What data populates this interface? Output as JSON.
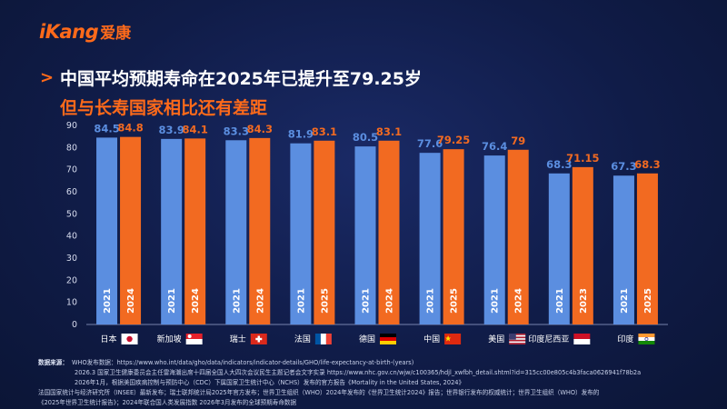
{
  "brand": {
    "logo_en": "iKang",
    "logo_cn": "爱康"
  },
  "title": {
    "line1": "中国平均预期寿命在2025年已提升至79.25岁",
    "line2": "但与长寿国家相比还有差距"
  },
  "colors": {
    "blue": "#5b8ee0",
    "orange": "#f26a21",
    "accent": "#ff6a1a"
  },
  "chart_data": {
    "type": "bar",
    "ylim": [
      0,
      90
    ],
    "yticks": [
      0,
      10,
      20,
      30,
      40,
      50,
      60,
      70,
      80,
      90
    ],
    "grid": false,
    "categories": [
      {
        "name": "日本",
        "flag": "japan",
        "bars": [
          {
            "year": "2021",
            "value": 84.5,
            "label": "84.5",
            "color": "blue"
          },
          {
            "year": "2024",
            "value": 84.8,
            "label": "84.8",
            "color": "orange"
          }
        ]
      },
      {
        "name": "新加坡",
        "flag": "singapore",
        "bars": [
          {
            "year": "2021",
            "value": 83.9,
            "label": "83.9",
            "color": "blue"
          },
          {
            "year": "2024",
            "value": 84.1,
            "label": "84.1",
            "color": "orange"
          }
        ]
      },
      {
        "name": "瑞士",
        "flag": "swiss",
        "bars": [
          {
            "year": "2021",
            "value": 83.3,
            "label": "83.3",
            "color": "blue"
          },
          {
            "year": "2024",
            "value": 84.3,
            "label": "84.3",
            "color": "orange"
          }
        ]
      },
      {
        "name": "法国",
        "flag": "france",
        "bars": [
          {
            "year": "2021",
            "value": 81.9,
            "label": "81.9",
            "color": "blue"
          },
          {
            "year": "2025",
            "value": 83.1,
            "label": "83.1",
            "color": "orange"
          }
        ]
      },
      {
        "name": "德国",
        "flag": "germany",
        "bars": [
          {
            "year": "2021",
            "value": 80.5,
            "label": "80.5",
            "color": "blue"
          },
          {
            "year": "2024",
            "value": 83.1,
            "label": "83.1",
            "color": "orange"
          }
        ]
      },
      {
        "name": "中国",
        "flag": "china",
        "bars": [
          {
            "year": "2021",
            "value": 77.6,
            "label": "77.6",
            "color": "blue"
          },
          {
            "year": "2025",
            "value": 79.25,
            "label": "79.25",
            "color": "orange"
          }
        ]
      },
      {
        "name": "美国",
        "flag": "usa",
        "bars": [
          {
            "year": "2021",
            "value": 76.4,
            "label": "76.4",
            "color": "blue"
          },
          {
            "year": "2024",
            "value": 79,
            "label": "79",
            "color": "orange"
          }
        ]
      },
      {
        "name": "印度尼西亚",
        "flag": "indonesia",
        "bars": [
          {
            "year": "2021",
            "value": 68.3,
            "label": "68.3",
            "color": "blue"
          },
          {
            "year": "2023",
            "value": 71.15,
            "label": "71.15",
            "color": "orange"
          }
        ]
      },
      {
        "name": "印度",
        "flag": "india",
        "bars": [
          {
            "year": "2021",
            "value": 67.3,
            "label": "67.3",
            "color": "blue"
          },
          {
            "year": "2025",
            "value": 68.3,
            "label": "68.3",
            "color": "orange"
          }
        ]
      }
    ]
  },
  "source": {
    "label": "数据来源：",
    "line1": "WHO发布数据：https://www.who.int/data/gho/data/indicators/indicator-details/GHO/life-expectancy-at-birth-(years)",
    "line2": "2026.3 国家卫生健康委员会主任雷海潮出席十四届全国人大四次会议民生主题记者会文字实录 https://www.nhc.gov.cn/wjw/c100365/hdjl_xwfbh_detail.shtml?id=315cc00e805c4b3faca0626941f78b2a",
    "line3": "2026年1月，根据美国疾病控制与预防中心（CDC）下属国家卫生统计中心（NCHS）发布的官方报告《Mortality in the United States, 2024》",
    "line4": "法国国家统计与经济研究所（INSEE）最新发布；瑞士联邦统计局2025年官方发布；世界卫生组织（WHO）2024年发布的《世界卫生统计2024》报告；世界银行发布的权威统计；世界卫生组织（WHO）发布的",
    "line5": "《2025年世界卫生统计报告》；2024年联合国人类发展指数 2026年3月发布的全球预期寿命数据"
  }
}
